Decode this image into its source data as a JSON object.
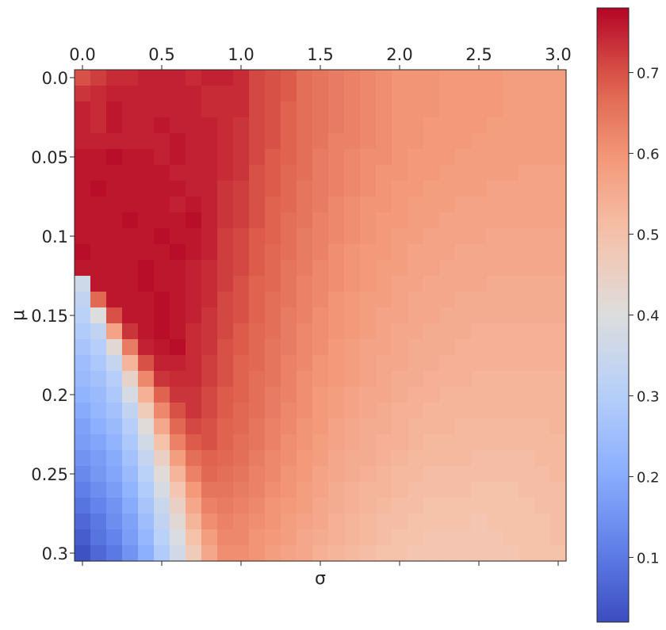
{
  "chart_data": {
    "type": "heatmap",
    "title": "",
    "xlabel": "σ",
    "ylabel": "μ",
    "x_tick_labels": [
      "0.0",
      "0.5",
      "1.0",
      "1.5",
      "2.0",
      "2.5",
      "3.0"
    ],
    "x_tick_values": [
      0.0,
      0.5,
      1.0,
      1.5,
      2.0,
      2.5,
      3.0
    ],
    "y_tick_labels": [
      "0.0",
      "0.05",
      "0.1",
      "0.15",
      "0.2",
      "0.25",
      "0.3"
    ],
    "y_tick_values": [
      0.0,
      0.05,
      0.1,
      0.15,
      0.2,
      0.25,
      0.3
    ],
    "x_range": [
      0.0,
      3.0
    ],
    "y_range": [
      0.0,
      0.3
    ],
    "grid_cols": 31,
    "grid_rows": 31,
    "colorbar": {
      "colormap": "coolwarm",
      "range": [
        0.02,
        0.78
      ],
      "tick_labels": [
        "0.1",
        "0.2",
        "0.3",
        "0.4",
        "0.5",
        "0.6",
        "0.7"
      ],
      "tick_values": [
        0.1,
        0.2,
        0.3,
        0.4,
        0.5,
        0.6,
        0.7
      ]
    },
    "values": [
      [
        0.7,
        0.72,
        0.74,
        0.74,
        0.75,
        0.75,
        0.75,
        0.74,
        0.75,
        0.75,
        0.74,
        0.71,
        0.7,
        0.69,
        0.66,
        0.65,
        0.64,
        0.63,
        0.62,
        0.61,
        0.6,
        0.6,
        0.6,
        0.59,
        0.59,
        0.59,
        0.59,
        0.58,
        0.58,
        0.58,
        0.58
      ],
      [
        0.73,
        0.74,
        0.75,
        0.75,
        0.75,
        0.75,
        0.75,
        0.75,
        0.74,
        0.74,
        0.74,
        0.71,
        0.7,
        0.69,
        0.66,
        0.65,
        0.64,
        0.63,
        0.62,
        0.61,
        0.6,
        0.6,
        0.6,
        0.59,
        0.59,
        0.59,
        0.59,
        0.58,
        0.58,
        0.58,
        0.58
      ],
      [
        0.75,
        0.74,
        0.76,
        0.75,
        0.75,
        0.75,
        0.75,
        0.75,
        0.74,
        0.74,
        0.74,
        0.71,
        0.7,
        0.68,
        0.66,
        0.65,
        0.64,
        0.63,
        0.62,
        0.61,
        0.6,
        0.6,
        0.6,
        0.59,
        0.59,
        0.59,
        0.59,
        0.58,
        0.58,
        0.58,
        0.58
      ],
      [
        0.75,
        0.74,
        0.76,
        0.75,
        0.75,
        0.76,
        0.75,
        0.75,
        0.75,
        0.74,
        0.73,
        0.71,
        0.7,
        0.68,
        0.66,
        0.65,
        0.64,
        0.63,
        0.62,
        0.61,
        0.6,
        0.6,
        0.59,
        0.59,
        0.59,
        0.59,
        0.58,
        0.58,
        0.58,
        0.58,
        0.58
      ],
      [
        0.75,
        0.75,
        0.75,
        0.75,
        0.75,
        0.75,
        0.76,
        0.75,
        0.75,
        0.74,
        0.73,
        0.71,
        0.7,
        0.68,
        0.66,
        0.65,
        0.63,
        0.63,
        0.62,
        0.61,
        0.6,
        0.6,
        0.59,
        0.59,
        0.59,
        0.58,
        0.58,
        0.58,
        0.58,
        0.58,
        0.58
      ],
      [
        0.76,
        0.76,
        0.77,
        0.76,
        0.76,
        0.75,
        0.76,
        0.75,
        0.75,
        0.74,
        0.73,
        0.71,
        0.69,
        0.68,
        0.66,
        0.64,
        0.63,
        0.62,
        0.61,
        0.61,
        0.6,
        0.59,
        0.59,
        0.59,
        0.58,
        0.58,
        0.58,
        0.58,
        0.58,
        0.58,
        0.58
      ],
      [
        0.76,
        0.76,
        0.76,
        0.76,
        0.76,
        0.76,
        0.75,
        0.75,
        0.75,
        0.74,
        0.73,
        0.7,
        0.69,
        0.67,
        0.66,
        0.64,
        0.63,
        0.62,
        0.61,
        0.6,
        0.6,
        0.59,
        0.59,
        0.58,
        0.58,
        0.58,
        0.58,
        0.58,
        0.57,
        0.57,
        0.57
      ],
      [
        0.76,
        0.77,
        0.76,
        0.76,
        0.76,
        0.76,
        0.76,
        0.75,
        0.75,
        0.73,
        0.72,
        0.7,
        0.69,
        0.67,
        0.65,
        0.64,
        0.63,
        0.62,
        0.61,
        0.6,
        0.59,
        0.59,
        0.58,
        0.58,
        0.58,
        0.58,
        0.57,
        0.57,
        0.57,
        0.57,
        0.57
      ],
      [
        0.76,
        0.76,
        0.76,
        0.76,
        0.76,
        0.76,
        0.75,
        0.76,
        0.75,
        0.73,
        0.72,
        0.7,
        0.68,
        0.67,
        0.65,
        0.64,
        0.62,
        0.61,
        0.6,
        0.6,
        0.59,
        0.58,
        0.58,
        0.58,
        0.57,
        0.57,
        0.57,
        0.57,
        0.57,
        0.57,
        0.57
      ],
      [
        0.76,
        0.76,
        0.76,
        0.77,
        0.76,
        0.76,
        0.76,
        0.77,
        0.75,
        0.73,
        0.72,
        0.7,
        0.68,
        0.66,
        0.65,
        0.63,
        0.62,
        0.61,
        0.6,
        0.59,
        0.59,
        0.58,
        0.58,
        0.57,
        0.57,
        0.57,
        0.57,
        0.57,
        0.57,
        0.57,
        0.57
      ],
      [
        0.76,
        0.76,
        0.76,
        0.76,
        0.76,
        0.77,
        0.76,
        0.76,
        0.75,
        0.72,
        0.71,
        0.69,
        0.68,
        0.66,
        0.64,
        0.63,
        0.62,
        0.61,
        0.6,
        0.59,
        0.58,
        0.58,
        0.57,
        0.57,
        0.57,
        0.57,
        0.56,
        0.56,
        0.56,
        0.56,
        0.56
      ],
      [
        0.77,
        0.76,
        0.76,
        0.76,
        0.76,
        0.76,
        0.77,
        0.76,
        0.75,
        0.72,
        0.71,
        0.69,
        0.67,
        0.66,
        0.64,
        0.63,
        0.61,
        0.6,
        0.59,
        0.59,
        0.58,
        0.57,
        0.57,
        0.57,
        0.56,
        0.56,
        0.56,
        0.56,
        0.56,
        0.56,
        0.56
      ],
      [
        0.76,
        0.76,
        0.76,
        0.76,
        0.77,
        0.76,
        0.76,
        0.75,
        0.74,
        0.72,
        0.71,
        0.69,
        0.67,
        0.65,
        0.64,
        0.62,
        0.61,
        0.6,
        0.59,
        0.58,
        0.58,
        0.57,
        0.57,
        0.56,
        0.56,
        0.56,
        0.56,
        0.56,
        0.56,
        0.56,
        0.56
      ],
      [
        0.36,
        0.76,
        0.76,
        0.76,
        0.77,
        0.76,
        0.76,
        0.75,
        0.74,
        0.72,
        0.7,
        0.68,
        0.67,
        0.65,
        0.63,
        0.62,
        0.61,
        0.6,
        0.59,
        0.58,
        0.57,
        0.57,
        0.56,
        0.56,
        0.56,
        0.56,
        0.55,
        0.55,
        0.55,
        0.55,
        0.55
      ],
      [
        0.33,
        0.67,
        0.76,
        0.76,
        0.76,
        0.77,
        0.76,
        0.75,
        0.74,
        0.71,
        0.7,
        0.68,
        0.66,
        0.65,
        0.63,
        0.62,
        0.6,
        0.59,
        0.58,
        0.58,
        0.57,
        0.56,
        0.56,
        0.56,
        0.55,
        0.55,
        0.55,
        0.55,
        0.55,
        0.55,
        0.55
      ],
      [
        0.31,
        0.4,
        0.7,
        0.76,
        0.76,
        0.77,
        0.76,
        0.75,
        0.73,
        0.71,
        0.7,
        0.68,
        0.66,
        0.64,
        0.63,
        0.61,
        0.6,
        0.59,
        0.58,
        0.57,
        0.57,
        0.56,
        0.56,
        0.55,
        0.55,
        0.55,
        0.55,
        0.55,
        0.55,
        0.55,
        0.55
      ],
      [
        0.29,
        0.33,
        0.57,
        0.73,
        0.76,
        0.77,
        0.76,
        0.74,
        0.73,
        0.71,
        0.69,
        0.67,
        0.66,
        0.64,
        0.62,
        0.61,
        0.6,
        0.59,
        0.58,
        0.57,
        0.56,
        0.56,
        0.55,
        0.55,
        0.55,
        0.54,
        0.54,
        0.54,
        0.54,
        0.54,
        0.54
      ],
      [
        0.27,
        0.3,
        0.42,
        0.64,
        0.75,
        0.76,
        0.77,
        0.74,
        0.73,
        0.7,
        0.69,
        0.67,
        0.65,
        0.64,
        0.62,
        0.61,
        0.59,
        0.58,
        0.57,
        0.57,
        0.56,
        0.55,
        0.55,
        0.55,
        0.54,
        0.54,
        0.54,
        0.54,
        0.54,
        0.54,
        0.54
      ],
      [
        0.25,
        0.28,
        0.34,
        0.53,
        0.7,
        0.75,
        0.75,
        0.74,
        0.72,
        0.7,
        0.68,
        0.67,
        0.65,
        0.63,
        0.62,
        0.6,
        0.59,
        0.58,
        0.57,
        0.56,
        0.56,
        0.55,
        0.55,
        0.54,
        0.54,
        0.54,
        0.54,
        0.54,
        0.54,
        0.54,
        0.54
      ],
      [
        0.24,
        0.26,
        0.3,
        0.44,
        0.62,
        0.73,
        0.74,
        0.74,
        0.72,
        0.7,
        0.68,
        0.66,
        0.65,
        0.63,
        0.61,
        0.6,
        0.59,
        0.58,
        0.57,
        0.56,
        0.55,
        0.55,
        0.54,
        0.54,
        0.54,
        0.53,
        0.53,
        0.53,
        0.53,
        0.53,
        0.53
      ],
      [
        0.22,
        0.24,
        0.28,
        0.38,
        0.54,
        0.68,
        0.73,
        0.73,
        0.71,
        0.69,
        0.68,
        0.66,
        0.64,
        0.63,
        0.61,
        0.59,
        0.58,
        0.57,
        0.56,
        0.56,
        0.55,
        0.54,
        0.54,
        0.53,
        0.53,
        0.53,
        0.53,
        0.53,
        0.53,
        0.53,
        0.53
      ],
      [
        0.2,
        0.23,
        0.26,
        0.33,
        0.47,
        0.62,
        0.7,
        0.73,
        0.71,
        0.69,
        0.67,
        0.66,
        0.64,
        0.62,
        0.61,
        0.59,
        0.58,
        0.57,
        0.56,
        0.55,
        0.54,
        0.54,
        0.53,
        0.53,
        0.53,
        0.53,
        0.53,
        0.53,
        0.53,
        0.53,
        0.53
      ],
      [
        0.18,
        0.21,
        0.24,
        0.3,
        0.41,
        0.56,
        0.67,
        0.71,
        0.7,
        0.68,
        0.67,
        0.65,
        0.63,
        0.62,
        0.6,
        0.59,
        0.57,
        0.56,
        0.55,
        0.55,
        0.54,
        0.53,
        0.53,
        0.53,
        0.52,
        0.52,
        0.52,
        0.52,
        0.52,
        0.52,
        0.53
      ],
      [
        0.17,
        0.19,
        0.22,
        0.28,
        0.37,
        0.5,
        0.63,
        0.69,
        0.7,
        0.68,
        0.66,
        0.65,
        0.63,
        0.61,
        0.6,
        0.58,
        0.57,
        0.56,
        0.55,
        0.54,
        0.54,
        0.53,
        0.52,
        0.52,
        0.52,
        0.52,
        0.52,
        0.52,
        0.52,
        0.52,
        0.52
      ],
      [
        0.15,
        0.17,
        0.2,
        0.26,
        0.34,
        0.45,
        0.58,
        0.66,
        0.68,
        0.67,
        0.66,
        0.64,
        0.62,
        0.61,
        0.59,
        0.58,
        0.56,
        0.55,
        0.55,
        0.54,
        0.53,
        0.52,
        0.52,
        0.52,
        0.52,
        0.51,
        0.51,
        0.51,
        0.51,
        0.52,
        0.52
      ],
      [
        0.13,
        0.16,
        0.19,
        0.24,
        0.31,
        0.41,
        0.53,
        0.63,
        0.67,
        0.66,
        0.65,
        0.63,
        0.62,
        0.6,
        0.59,
        0.57,
        0.56,
        0.55,
        0.54,
        0.53,
        0.52,
        0.52,
        0.51,
        0.51,
        0.51,
        0.51,
        0.51,
        0.51,
        0.51,
        0.51,
        0.52
      ],
      [
        0.11,
        0.14,
        0.17,
        0.22,
        0.29,
        0.38,
        0.49,
        0.59,
        0.65,
        0.65,
        0.64,
        0.63,
        0.61,
        0.6,
        0.58,
        0.57,
        0.55,
        0.54,
        0.53,
        0.53,
        0.52,
        0.51,
        0.51,
        0.51,
        0.51,
        0.5,
        0.5,
        0.5,
        0.51,
        0.51,
        0.51
      ],
      [
        0.09,
        0.12,
        0.15,
        0.2,
        0.27,
        0.35,
        0.45,
        0.56,
        0.63,
        0.64,
        0.63,
        0.62,
        0.6,
        0.59,
        0.58,
        0.56,
        0.55,
        0.54,
        0.53,
        0.52,
        0.51,
        0.51,
        0.5,
        0.5,
        0.5,
        0.5,
        0.5,
        0.5,
        0.5,
        0.51,
        0.51
      ],
      [
        0.07,
        0.1,
        0.14,
        0.18,
        0.25,
        0.33,
        0.42,
        0.53,
        0.61,
        0.63,
        0.62,
        0.61,
        0.6,
        0.58,
        0.57,
        0.56,
        0.54,
        0.53,
        0.52,
        0.51,
        0.51,
        0.5,
        0.5,
        0.5,
        0.5,
        0.49,
        0.5,
        0.5,
        0.5,
        0.5,
        0.51
      ],
      [
        0.05,
        0.09,
        0.12,
        0.17,
        0.23,
        0.31,
        0.39,
        0.5,
        0.58,
        0.62,
        0.62,
        0.6,
        0.59,
        0.58,
        0.56,
        0.55,
        0.54,
        0.53,
        0.52,
        0.51,
        0.5,
        0.5,
        0.49,
        0.49,
        0.49,
        0.49,
        0.49,
        0.5,
        0.5,
        0.5,
        0.51
      ],
      [
        0.03,
        0.07,
        0.1,
        0.15,
        0.21,
        0.29,
        0.37,
        0.47,
        0.56,
        0.61,
        0.61,
        0.6,
        0.58,
        0.57,
        0.56,
        0.54,
        0.53,
        0.52,
        0.51,
        0.5,
        0.5,
        0.49,
        0.49,
        0.49,
        0.49,
        0.49,
        0.49,
        0.49,
        0.5,
        0.5,
        0.5
      ]
    ]
  }
}
